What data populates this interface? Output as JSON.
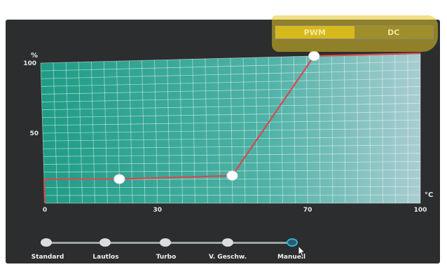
{
  "mode_toggle": {
    "options": [
      "PWM",
      "DC"
    ],
    "selected": "PWM"
  },
  "chart_data": {
    "type": "line",
    "ylabel": "%",
    "xlabel": "°C",
    "xlim": [
      0,
      100
    ],
    "ylim": [
      0,
      100
    ],
    "x_ticks": [
      "0",
      "30",
      "70",
      "100"
    ],
    "y_ticks": [
      "100",
      "50"
    ],
    "grid": true,
    "series": [
      {
        "points": [
          [
            0,
            17
          ],
          [
            0.6,
            17
          ],
          [
            20,
            17
          ],
          [
            50,
            19
          ],
          [
            72,
            100
          ],
          [
            100,
            100
          ]
        ],
        "control_points": [
          [
            20,
            17
          ],
          [
            50,
            19
          ],
          [
            72,
            100
          ]
        ]
      }
    ]
  },
  "presets": {
    "items": [
      "Standard",
      "Lautlos",
      "Turbo",
      "V. Geschw.",
      "Manuell"
    ],
    "selected": "Manuell"
  },
  "colors": {
    "grid_fill": "#22a691",
    "curve": "#d9484f",
    "accent": "#d6b91c"
  }
}
